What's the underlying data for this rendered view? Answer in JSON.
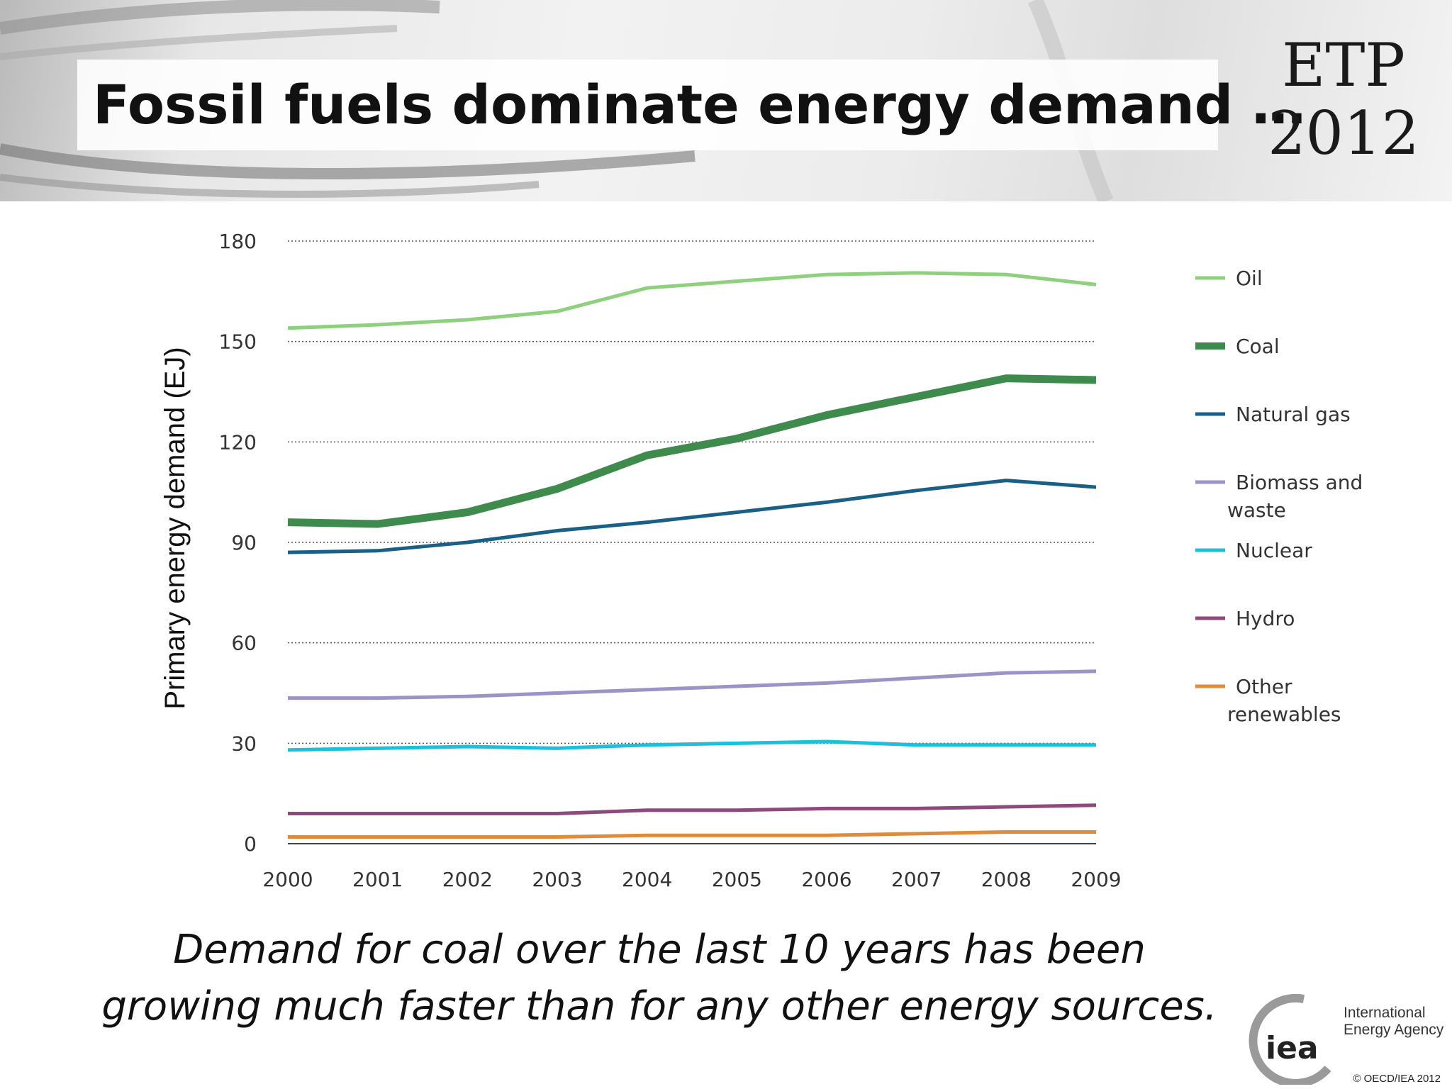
{
  "slide": {
    "title": "Fossil fuels dominate energy demand …",
    "badge_line1": "ETP",
    "badge_line2": "2012",
    "caption_line1": "Demand for coal over the last 10 years has been",
    "caption_line2": "growing much faster than for any other energy sources.",
    "logo_mark": "iea",
    "logo_name_line1": "International",
    "logo_name_line2": "Energy Agency",
    "copyright": "© OECD/IEA 2012"
  },
  "chart_data": {
    "type": "line",
    "title": "",
    "xlabel": "",
    "ylabel": "Primary energy demand (EJ)",
    "x": [
      "2000",
      "2001",
      "2002",
      "2003",
      "2004",
      "2005",
      "2006",
      "2007",
      "2008",
      "2009"
    ],
    "ylim": [
      0,
      180
    ],
    "yticks": [
      0,
      30,
      60,
      90,
      120,
      150,
      180
    ],
    "grid": "horizontal dotted",
    "legend_position": "right",
    "series": [
      {
        "name": "Oil",
        "color": "#8fd07e",
        "width": 5,
        "values": [
          154,
          155,
          156.5,
          159,
          166,
          168,
          170,
          170.5,
          170,
          167
        ]
      },
      {
        "name": "Coal",
        "color": "#3f8b4e",
        "width": 11,
        "values": [
          96,
          95.5,
          99,
          106,
          116,
          121,
          128,
          133.5,
          139,
          138.5
        ]
      },
      {
        "name": "Natural gas",
        "color": "#1a5f86",
        "width": 5,
        "values": [
          87,
          87.5,
          90,
          93.5,
          96,
          99,
          102,
          105.5,
          108.5,
          106.5
        ]
      },
      {
        "name": "Biomass and waste",
        "color": "#9c93c7",
        "width": 5,
        "values": [
          43.5,
          43.5,
          44,
          45,
          46,
          47,
          48,
          49.5,
          51,
          51.5
        ]
      },
      {
        "name": "Nuclear",
        "color": "#1cbfdc",
        "width": 5,
        "values": [
          28,
          28.5,
          29,
          28.5,
          29.5,
          30,
          30.5,
          29.5,
          29.5,
          29.5
        ]
      },
      {
        "name": "Hydro",
        "color": "#8e4a7c",
        "width": 5,
        "values": [
          9,
          9,
          9,
          9,
          10,
          10,
          10.5,
          10.5,
          11,
          11.5
        ]
      },
      {
        "name": "Other renewables",
        "color": "#e08a3c",
        "width": 5,
        "values": [
          2,
          2,
          2,
          2,
          2.5,
          2.5,
          2.5,
          3,
          3.5,
          3.5
        ]
      }
    ]
  }
}
